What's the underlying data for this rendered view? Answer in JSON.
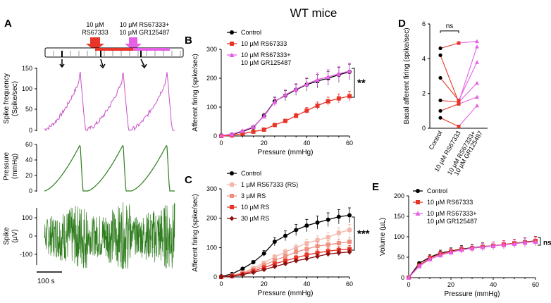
{
  "figure_title": "WT mice",
  "colors": {
    "control": "#000000",
    "rs": "#e8352a",
    "combo": "#e660e6",
    "rs1": "#f3b7a9",
    "rs3": "#ef8f7f",
    "rs10": "#e8352a",
    "rs30": "#8b1010",
    "green": "#2f7d1e",
    "magenta": "#c94fc9"
  },
  "panelA": {
    "label": "A",
    "drug1_label_line1": "10 µM",
    "drug1_label_line2": "RS67333",
    "drug2_label_line1": "10 µM RS67333+",
    "drug2_label_line2": "10 µM GR125487",
    "rows": [
      {
        "ylabel_line1": "Spike frequency",
        "ylabel_line2": "(Spike/sec)",
        "ticks": [
          "150",
          "100",
          "50",
          "0"
        ]
      },
      {
        "ylabel_line1": "Pressure",
        "ylabel_line2": "(mmHg)",
        "ticks": [
          "60",
          "40",
          "20",
          "0"
        ]
      },
      {
        "ylabel_line1": "Spike",
        "ylabel_line2": "(µV)",
        "ticks": [
          "100",
          "0",
          "-100"
        ]
      }
    ],
    "scale_bar": "100 s"
  },
  "chart_data": [
    {
      "panel": "B",
      "type": "line",
      "xlabel": "Pressure (mmHg)",
      "ylabel": "Afferent firing (spike/sec)",
      "xlim": [
        0,
        60
      ],
      "ylim": [
        0,
        300
      ],
      "xticks": [
        "0",
        "20",
        "40",
        "60"
      ],
      "yticks": [
        "0",
        "100",
        "200",
        "300"
      ],
      "x": [
        0,
        5,
        10,
        15,
        20,
        25,
        30,
        35,
        40,
        45,
        50,
        55,
        60
      ],
      "series": [
        {
          "name": "Control",
          "color": "#000000",
          "marker": "circle",
          "values": [
            2,
            5,
            15,
            30,
            70,
            120,
            140,
            160,
            178,
            190,
            200,
            212,
            222
          ]
        },
        {
          "name": "10 µM RS67333",
          "color": "#e8352a",
          "marker": "square",
          "values": [
            0,
            2,
            8,
            15,
            22,
            38,
            52,
            70,
            88,
            105,
            120,
            130,
            138
          ]
        },
        {
          "name": "10 µM RS67333+ 10 µM GR125487",
          "color": "#e660e6",
          "marker": "triangle",
          "values": [
            2,
            6,
            18,
            32,
            68,
            118,
            143,
            162,
            180,
            195,
            205,
            215,
            225
          ]
        }
      ],
      "significance": "**"
    },
    {
      "panel": "C",
      "type": "line",
      "xlabel": "Pressure (mmHg)",
      "ylabel": "Afferent firing (spike/sec)",
      "xlim": [
        0,
        60
      ],
      "ylim": [
        0,
        300
      ],
      "xticks": [
        "0",
        "20",
        "40",
        "60"
      ],
      "yticks": [
        "0",
        "100",
        "200",
        "300"
      ],
      "x": [
        0,
        5,
        10,
        15,
        20,
        25,
        30,
        35,
        40,
        45,
        50,
        55,
        60
      ],
      "series": [
        {
          "name": "Control",
          "color": "#000000",
          "marker": "circle",
          "values": [
            2,
            10,
            28,
            50,
            80,
            120,
            140,
            160,
            175,
            185,
            195,
            205,
            210
          ]
        },
        {
          "name": "1 µM RS67333 (RS)",
          "color": "#f3b7a9",
          "marker": "square",
          "values": [
            0,
            5,
            15,
            30,
            48,
            68,
            85,
            100,
            115,
            125,
            135,
            150,
            160
          ]
        },
        {
          "name": "3 µM RS",
          "color": "#ef8f7f",
          "marker": "square",
          "values": [
            0,
            4,
            12,
            25,
            40,
            56,
            70,
            85,
            95,
            105,
            110,
            115,
            120
          ]
        },
        {
          "name": "10 µM RS",
          "color": "#e8352a",
          "marker": "square",
          "values": [
            0,
            3,
            10,
            20,
            32,
            45,
            55,
            65,
            75,
            82,
            88,
            92,
            95
          ]
        },
        {
          "name": "30 µM RS",
          "color": "#8b1010",
          "marker": "diamond",
          "values": [
            0,
            2,
            8,
            15,
            25,
            35,
            45,
            55,
            62,
            70,
            78,
            82,
            85
          ]
        }
      ],
      "significance": "***"
    },
    {
      "panel": "D",
      "type": "scatter",
      "ylabel": "Basal afferent firing (spike/sec)",
      "ylim": [
        0,
        6
      ],
      "yticks": [
        "0",
        "2",
        "4",
        "6"
      ],
      "categories": [
        "Control",
        "10 µM RS67333",
        "10 µM RS67333+ 10 µM GR125487"
      ],
      "pairs": [
        {
          "control": 4.6,
          "rs": 4.9,
          "combo": 5.0
        },
        {
          "control": 4.2,
          "rs": 1.5,
          "combo": 4.7
        },
        {
          "control": 2.9,
          "rs": 1.6,
          "combo": 3.8
        },
        {
          "control": 1.6,
          "rs": 1.5,
          "combo": 2.6
        },
        {
          "control": 1.0,
          "rs": 1.4,
          "combo": 1.8
        },
        {
          "control": 0.6,
          "rs": 0.1,
          "combo": 1.3
        }
      ],
      "significance": "ns"
    },
    {
      "panel": "E",
      "type": "line",
      "xlabel": "Pressure (mmHg)",
      "ylabel": "Volume (µL)",
      "xlim": [
        0,
        60
      ],
      "ylim": [
        0,
        200
      ],
      "xticks": [
        "0",
        "20",
        "40",
        "60"
      ],
      "yticks": [
        "0",
        "50",
        "100",
        "150",
        "200"
      ],
      "x": [
        0,
        5,
        10,
        15,
        20,
        25,
        30,
        35,
        40,
        45,
        50,
        55,
        60
      ],
      "series": [
        {
          "name": "Control",
          "color": "#000000",
          "marker": "circle",
          "values": [
            0,
            35,
            50,
            60,
            65,
            70,
            73,
            76,
            78,
            81,
            84,
            87,
            90
          ]
        },
        {
          "name": "10 µM RS67333",
          "color": "#e8352a",
          "marker": "square",
          "values": [
            0,
            30,
            48,
            58,
            64,
            69,
            72,
            75,
            78,
            81,
            84,
            86,
            90
          ]
        },
        {
          "name": "10 µM RS67333+ 10 µM GR125487",
          "color": "#e660e6",
          "marker": "triangle",
          "values": [
            0,
            28,
            45,
            55,
            62,
            68,
            72,
            75,
            78,
            80,
            83,
            86,
            88
          ]
        }
      ],
      "significance": "ns"
    }
  ]
}
